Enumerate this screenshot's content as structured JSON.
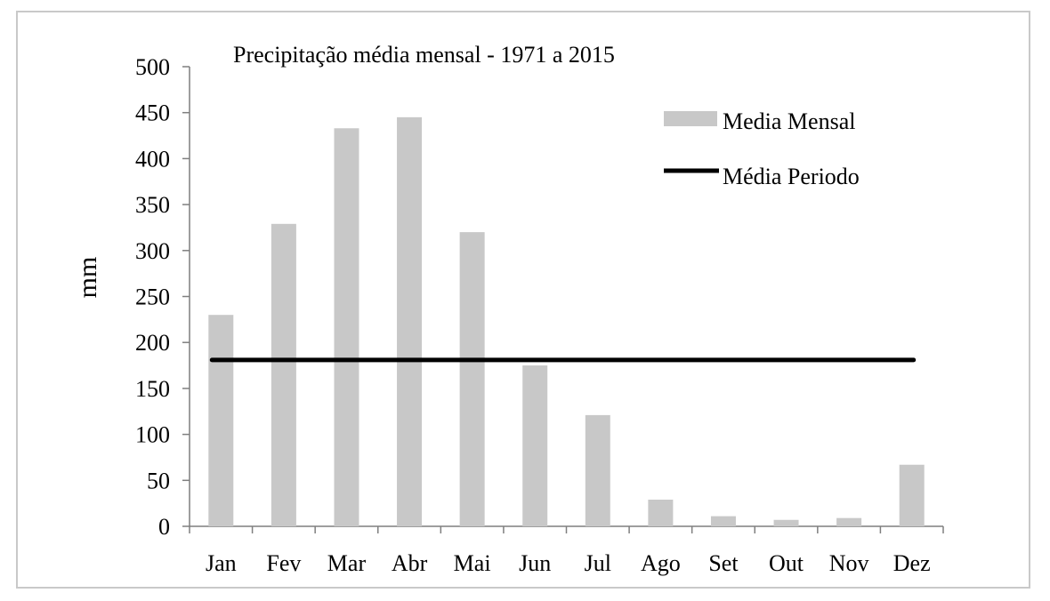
{
  "chart_data": {
    "type": "bar",
    "title": "Precipitação média mensal - 1971 a 2015",
    "xlabel": "",
    "ylabel": "mm",
    "categories": [
      "Jan",
      "Fev",
      "Mar",
      "Abr",
      "Mai",
      "Jun",
      "Jul",
      "Ago",
      "Set",
      "Out",
      "Nov",
      "Dez"
    ],
    "series": [
      {
        "name": "Media Mensal",
        "kind": "bar",
        "color": "#c8c8c8",
        "values": [
          230,
          329,
          433,
          445,
          320,
          175,
          121,
          29,
          11,
          7,
          9,
          67
        ]
      },
      {
        "name": "Média Periodo",
        "kind": "line",
        "color": "#000000",
        "value": 181
      }
    ],
    "ylim": [
      0,
      500
    ],
    "yticks": [
      0,
      50,
      100,
      150,
      200,
      250,
      300,
      350,
      400,
      450,
      500
    ],
    "grid": false,
    "legend_position": "top-right"
  }
}
